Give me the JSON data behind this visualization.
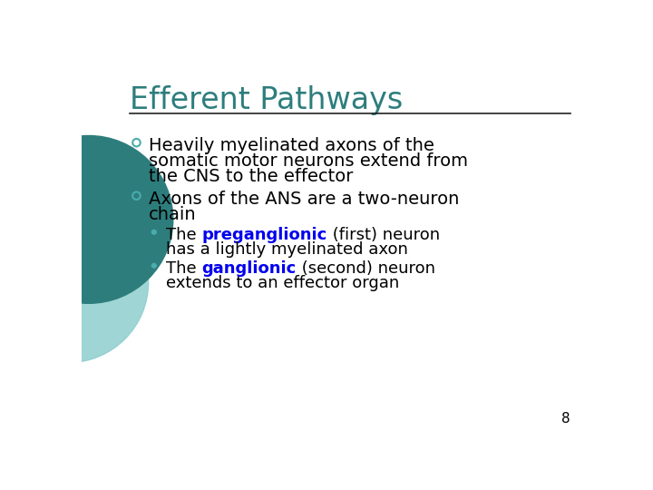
{
  "title": "Efferent Pathways",
  "title_color": "#2E7D7D",
  "title_fontsize": 24,
  "background_color": "#FFFFFF",
  "line_color": "#222222",
  "text_color": "#000000",
  "blue_color": "#0000EE",
  "teal_color": "#4AACAC",
  "slide_number": "8",
  "circle_color1": "#2E7D7D",
  "circle_color2": "#8ECECE",
  "main_fs": 14,
  "sub_fs": 13,
  "bullet1_line1": "Heavily myelinated axons of the",
  "bullet1_line2": "somatic motor neurons extend from",
  "bullet1_line3": "the CNS to the effector",
  "bullet2_line1": "Axons of the ANS are a two-neuron",
  "bullet2_line2": "chain",
  "sub1_pre": "The ",
  "sub1_blue": "preganglionic",
  "sub1_post": " (first) neuron",
  "sub1_line2": "has a lightly myelinated axon",
  "sub2_pre": "The ",
  "sub2_blue": "ganglionic",
  "sub2_post": " (second) neuron",
  "sub2_line2": "extends to an effector organ"
}
